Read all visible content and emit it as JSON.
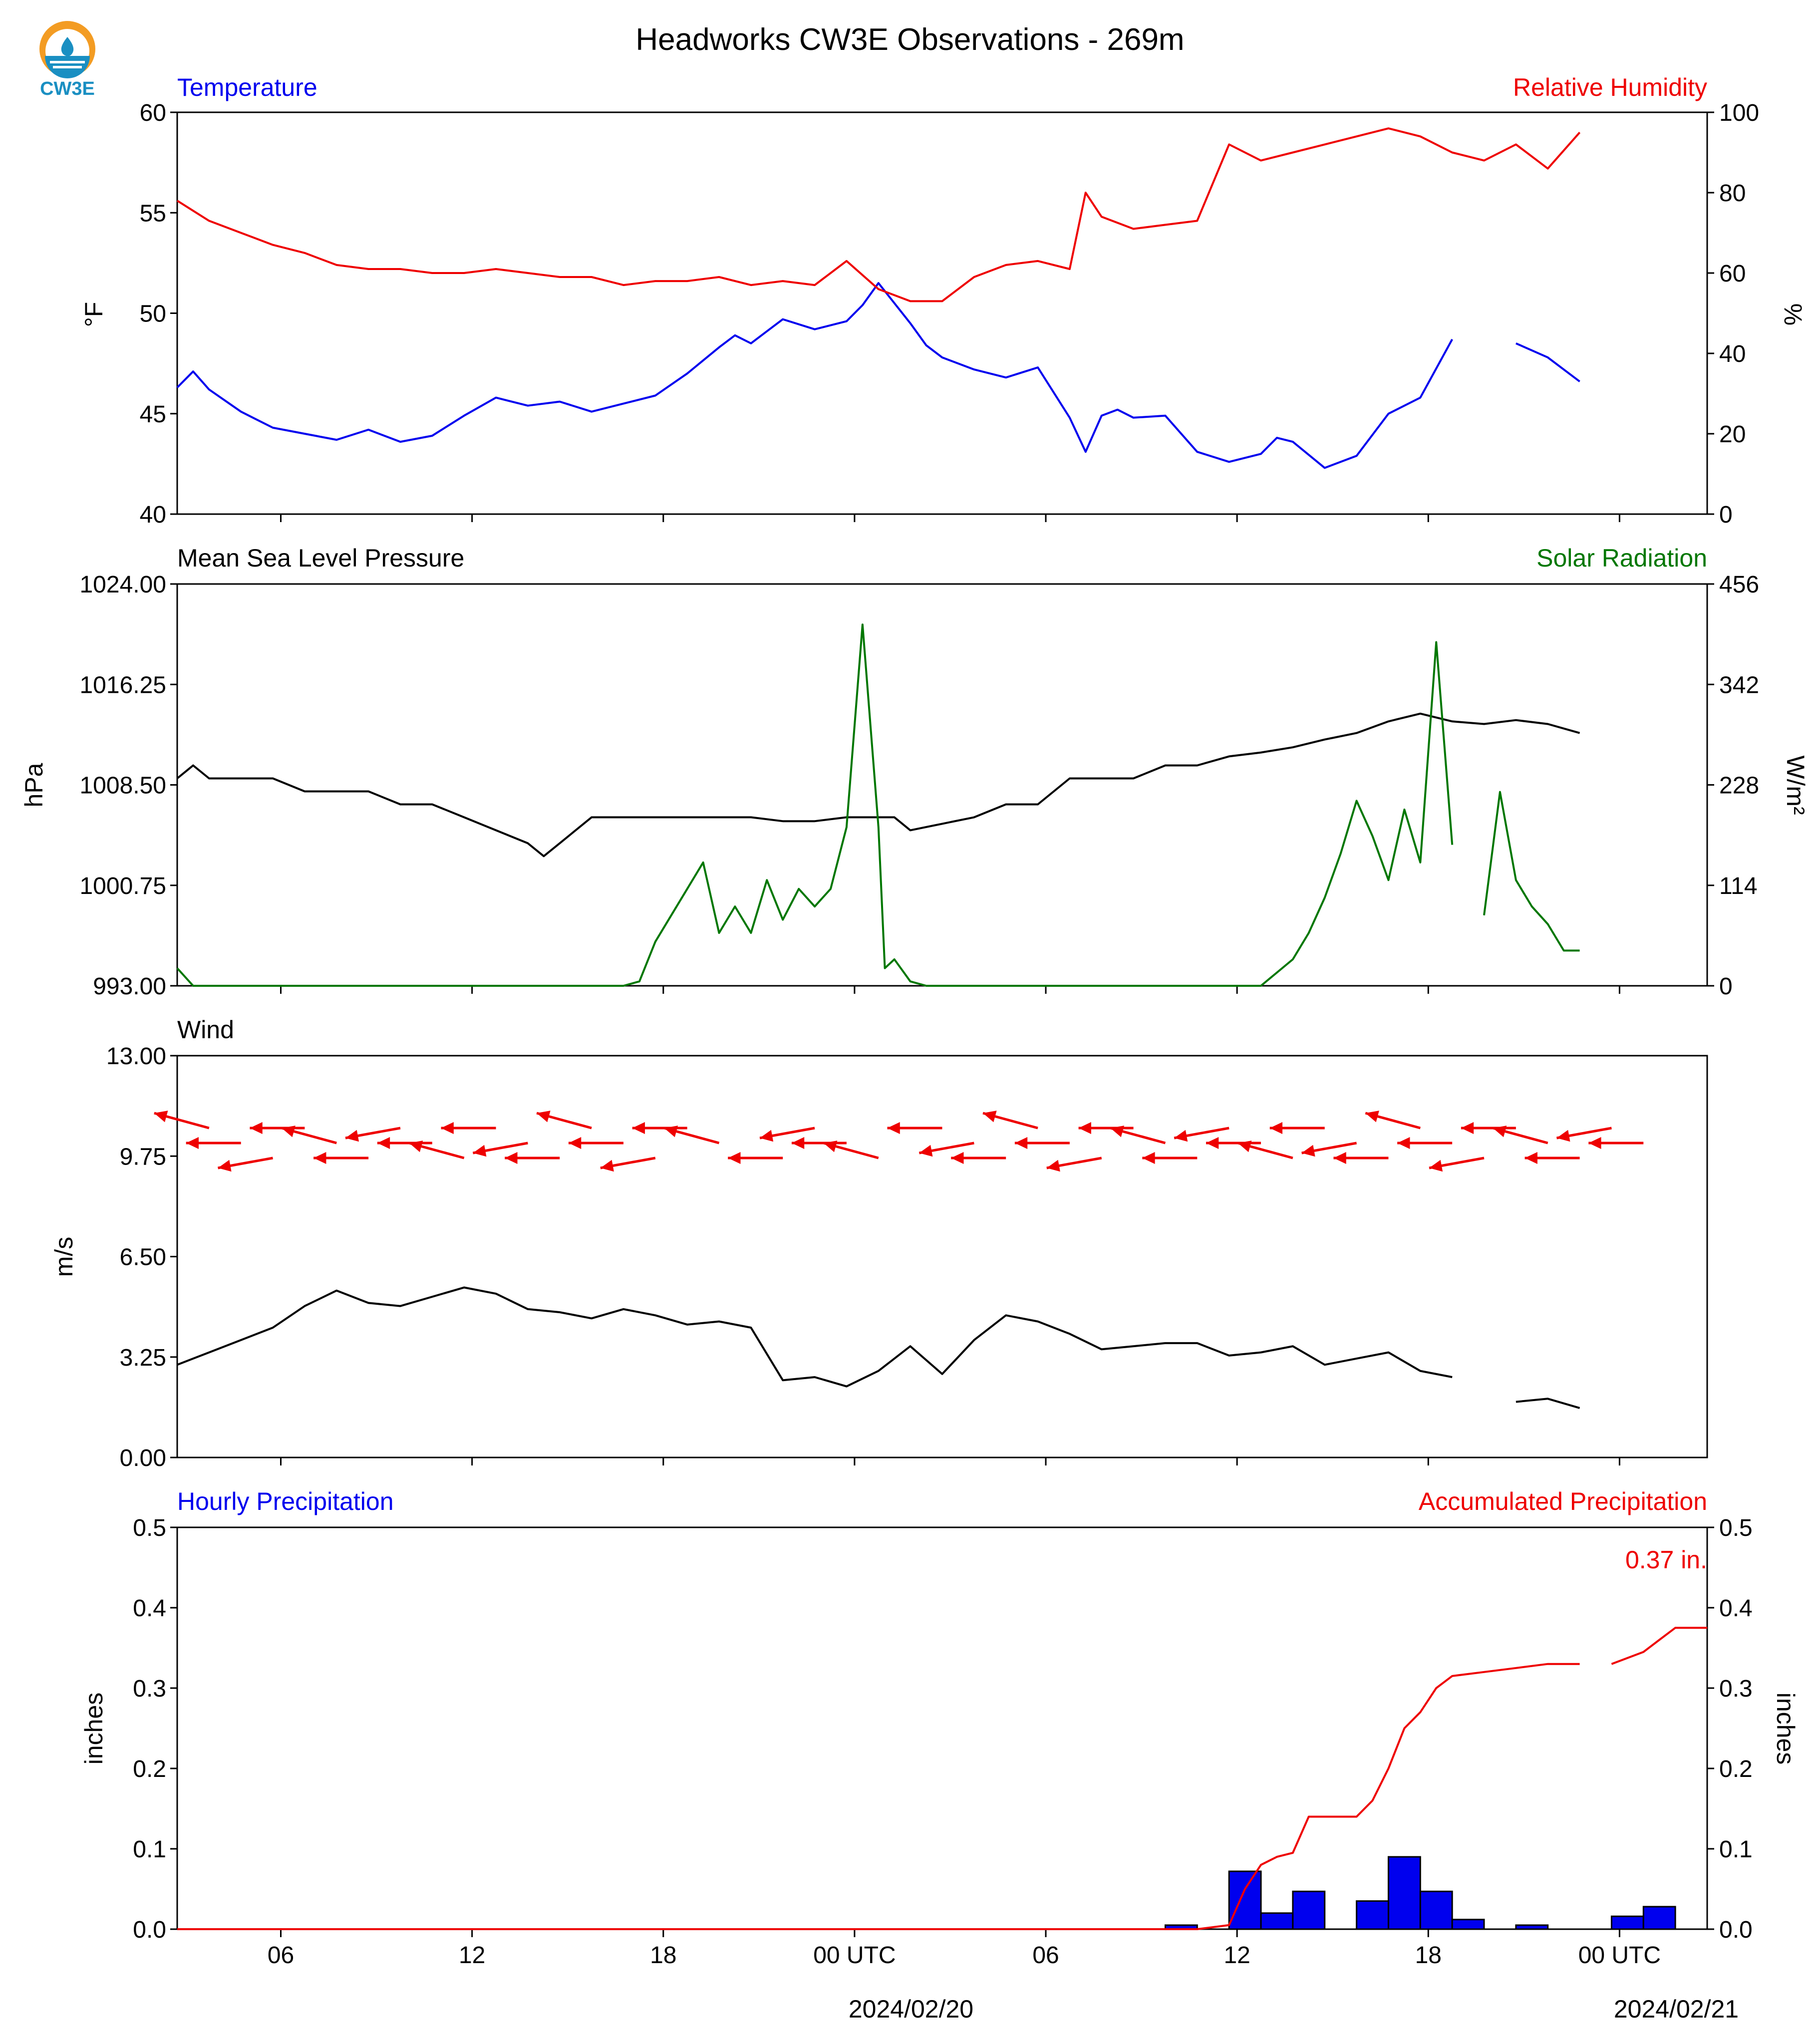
{
  "page": {
    "title": "Headworks CW3E Observations - 269m",
    "logo_text": "CW3E"
  },
  "time_axis": {
    "ticks": [
      "06",
      "12",
      "18",
      "00 UTC",
      "06",
      "12",
      "18",
      "00 UTC"
    ],
    "dates": [
      "2024/02/20",
      "2024/02/21"
    ]
  },
  "chart_data": [
    {
      "type": "line",
      "left_label": "Temperature",
      "right_label": "Relative Humidity",
      "ylabel_left": "°F",
      "ylabel_right": "%",
      "ylim_left": [
        40,
        60
      ],
      "ylim_right": [
        0,
        100
      ],
      "yticks_left": [
        "60",
        "55",
        "50",
        "45",
        "40"
      ],
      "yticks_right": [
        "100",
        "80",
        "60",
        "40",
        "20",
        "0"
      ],
      "xlim_hours": [
        0,
        48
      ],
      "series": [
        {
          "color": "#0000ee",
          "axis": "left",
          "x": [
            0,
            0.5,
            1,
            2,
            3,
            4,
            5,
            6,
            7,
            8,
            9,
            10,
            11,
            12,
            13,
            14,
            15,
            16,
            17,
            17.5,
            18,
            18.5,
            19,
            20,
            21,
            21.5,
            22,
            23,
            23.5,
            24,
            25,
            26,
            27,
            28,
            28.5,
            29,
            29.5,
            30,
            31,
            32,
            33,
            34,
            34.5,
            35,
            36,
            37,
            38,
            39,
            40,
            41,
            42,
            43,
            44
          ],
          "y": [
            46.3,
            47.1,
            46.2,
            45.1,
            44.3,
            44.0,
            43.7,
            44.2,
            43.6,
            43.9,
            44.9,
            45.8,
            45.4,
            45.6,
            45.1,
            45.5,
            45.9,
            47.0,
            48.3,
            48.9,
            48.5,
            49.1,
            49.7,
            49.2,
            49.6,
            50.4,
            51.5,
            49.5,
            48.4,
            47.8,
            47.2,
            46.8,
            47.3,
            44.8,
            43.1,
            44.9,
            45.2,
            44.8,
            44.9,
            43.1,
            42.6,
            43.0,
            43.8,
            43.6,
            42.3,
            42.9,
            45.0,
            45.8,
            48.7,
            null,
            48.5,
            47.8,
            46.6
          ]
        },
        {
          "color": "#ee0000",
          "axis": "right",
          "x": [
            0,
            1,
            2,
            3,
            4,
            5,
            6,
            7,
            8,
            9,
            10,
            11,
            12,
            13,
            14,
            15,
            16,
            17,
            18,
            19,
            20,
            21,
            22,
            23,
            24,
            25,
            26,
            27,
            28,
            28.5,
            29,
            30,
            31,
            32,
            33,
            34,
            35,
            36,
            37,
            38,
            39,
            40,
            41,
            42,
            43,
            44
          ],
          "y": [
            78,
            73,
            70,
            67,
            65,
            62,
            61,
            61,
            60,
            60,
            61,
            60,
            59,
            59,
            57,
            58,
            58,
            59,
            57,
            58,
            57,
            63,
            56,
            53,
            53,
            59,
            62,
            63,
            61,
            80,
            74,
            71,
            72,
            73,
            92,
            88,
            90,
            92,
            94,
            96,
            94,
            90,
            88,
            92,
            86,
            95
          ]
        }
      ]
    },
    {
      "type": "line",
      "left_label": "Mean Sea Level Pressure",
      "right_label": "Solar Radiation",
      "ylabel_left": "hPa",
      "ylabel_right": "W/m²",
      "ylim_left": [
        993.0,
        1024.0
      ],
      "ylim_right": [
        0,
        456
      ],
      "yticks_left": [
        "1024.00",
        "1016.25",
        "1008.50",
        "1000.75",
        "993.00"
      ],
      "yticks_right": [
        "456",
        "342",
        "228",
        "114",
        "0"
      ],
      "xlim_hours": [
        0,
        48
      ],
      "series": [
        {
          "color": "#000000",
          "axis": "left",
          "x": [
            0,
            0.5,
            1,
            2,
            3,
            4,
            5,
            6,
            7,
            8,
            9,
            10,
            11,
            11.5,
            12,
            13,
            14,
            15,
            16,
            17,
            18,
            19,
            20,
            21,
            22,
            22.5,
            23,
            24,
            25,
            26,
            27,
            28,
            29,
            30,
            31,
            32,
            33,
            34,
            35,
            36,
            37,
            38,
            39,
            40,
            41,
            42,
            43,
            44
          ],
          "y": [
            1009,
            1010,
            1009,
            1009,
            1009,
            1008,
            1008,
            1008,
            1007,
            1007,
            1006,
            1005,
            1004,
            1003,
            1004,
            1006,
            1006,
            1006,
            1006,
            1006,
            1006,
            1005.7,
            1005.7,
            1006,
            1006,
            1006,
            1005,
            1005.5,
            1006,
            1007,
            1007,
            1009,
            1009,
            1009,
            1010,
            1010,
            1010.7,
            1011,
            1011.4,
            1012,
            1012.5,
            1013.4,
            1014,
            1013.4,
            1013.2,
            1013.5,
            1013.2,
            1012.5
          ]
        },
        {
          "color": "#007700",
          "axis": "right",
          "x": [
            0,
            0.5,
            1,
            2,
            3,
            4,
            5,
            6,
            7,
            8,
            9,
            10,
            11,
            12,
            13,
            14,
            14.5,
            15,
            15.5,
            16,
            16.5,
            17,
            17.5,
            18,
            18.5,
            19,
            19.5,
            20,
            20.5,
            21,
            21.5,
            22,
            22.2,
            22.5,
            22.8,
            23,
            23.5,
            24,
            25,
            26,
            27,
            28,
            29,
            30,
            31,
            32,
            33,
            34,
            34.5,
            35,
            35.5,
            36,
            36.5,
            37,
            37.5,
            38,
            38.5,
            39,
            39.5,
            40,
            40.5,
            41,
            41.5,
            42,
            42.5,
            43,
            43.5,
            44
          ],
          "y": [
            20,
            0,
            0,
            0,
            0,
            0,
            0,
            0,
            0,
            0,
            0,
            0,
            0,
            0,
            0,
            0,
            5,
            50,
            80,
            110,
            140,
            60,
            90,
            60,
            120,
            75,
            110,
            90,
            110,
            180,
            410,
            180,
            20,
            30,
            15,
            5,
            0,
            0,
            0,
            0,
            0,
            0,
            0,
            0,
            0,
            0,
            0,
            0,
            15,
            30,
            60,
            100,
            150,
            210,
            170,
            120,
            200,
            140,
            390,
            160,
            null,
            80,
            220,
            120,
            90,
            70,
            40,
            40
          ]
        }
      ]
    },
    {
      "type": "line",
      "left_label": "Wind",
      "ylabel_left": "m/s",
      "ylim_left": [
        0,
        13
      ],
      "yticks_left": [
        "13.00",
        "9.75",
        "6.50",
        "3.25",
        "0.00"
      ],
      "xlim_hours": [
        0,
        48
      ],
      "series": [
        {
          "color": "#000000",
          "axis": "left",
          "x": [
            0,
            1,
            2,
            3,
            4,
            5,
            6,
            7,
            8,
            9,
            10,
            11,
            12,
            13,
            14,
            15,
            16,
            17,
            18,
            19,
            20,
            21,
            22,
            23,
            24,
            25,
            26,
            27,
            28,
            29,
            30,
            31,
            32,
            33,
            34,
            35,
            36,
            37,
            38,
            39,
            40,
            41,
            42,
            43,
            44
          ],
          "y": [
            3.0,
            3.4,
            3.8,
            4.2,
            4.9,
            5.4,
            5.0,
            4.9,
            5.2,
            5.5,
            5.3,
            4.8,
            4.7,
            4.5,
            4.8,
            4.6,
            4.3,
            4.4,
            4.2,
            2.5,
            2.6,
            2.3,
            2.8,
            3.6,
            2.7,
            3.8,
            4.6,
            4.4,
            4.0,
            3.5,
            3.6,
            3.7,
            3.7,
            3.3,
            3.4,
            3.6,
            3.0,
            3.2,
            3.4,
            2.8,
            2.6,
            null,
            1.8,
            1.9,
            1.6
          ],
          "wind_arrows": "direction shown as red arrows along the top of the panel"
        }
      ]
    },
    {
      "type": "bar",
      "left_label": "Hourly Precipitation",
      "right_label": "Accumulated Precipitation",
      "annotation": "0.37 in.",
      "ylabel_left": "inches",
      "ylabel_right": "inches",
      "ylim_left": [
        0,
        0.5
      ],
      "ylim_right": [
        0,
        0.5
      ],
      "yticks_left": [
        "0.5",
        "0.4",
        "0.3",
        "0.2",
        "0.1",
        "0.0"
      ],
      "yticks_right": [
        "0.5",
        "0.4",
        "0.3",
        "0.2",
        "0.1",
        "0.0"
      ],
      "xlim_hours": [
        0,
        48
      ],
      "bars": {
        "color": "#0000ee",
        "x_start_hours": [
          31,
          33,
          34,
          35,
          37,
          38,
          39,
          40,
          42,
          45,
          46
        ],
        "values": [
          0.005,
          0.072,
          0.02,
          0.047,
          0.035,
          0.09,
          0.047,
          0.012,
          0.005,
          0.016,
          0.028
        ]
      },
      "series": [
        {
          "color": "#ee0000",
          "axis": "right",
          "x": [
            0,
            32,
            33,
            33.5,
            34,
            34.5,
            35,
            35.5,
            36,
            37,
            37.5,
            38,
            38.5,
            39,
            39.5,
            40,
            41,
            42,
            43,
            44,
            null,
            45,
            46,
            46.5,
            47,
            48
          ],
          "y": [
            0,
            0,
            0.005,
            0.05,
            0.08,
            0.09,
            0.095,
            0.14,
            0.14,
            0.14,
            0.16,
            0.2,
            0.25,
            0.27,
            0.3,
            0.315,
            0.32,
            0.325,
            0.33,
            0.33,
            null,
            0.33,
            0.345,
            0.36,
            0.375,
            0.375
          ]
        }
      ]
    }
  ]
}
